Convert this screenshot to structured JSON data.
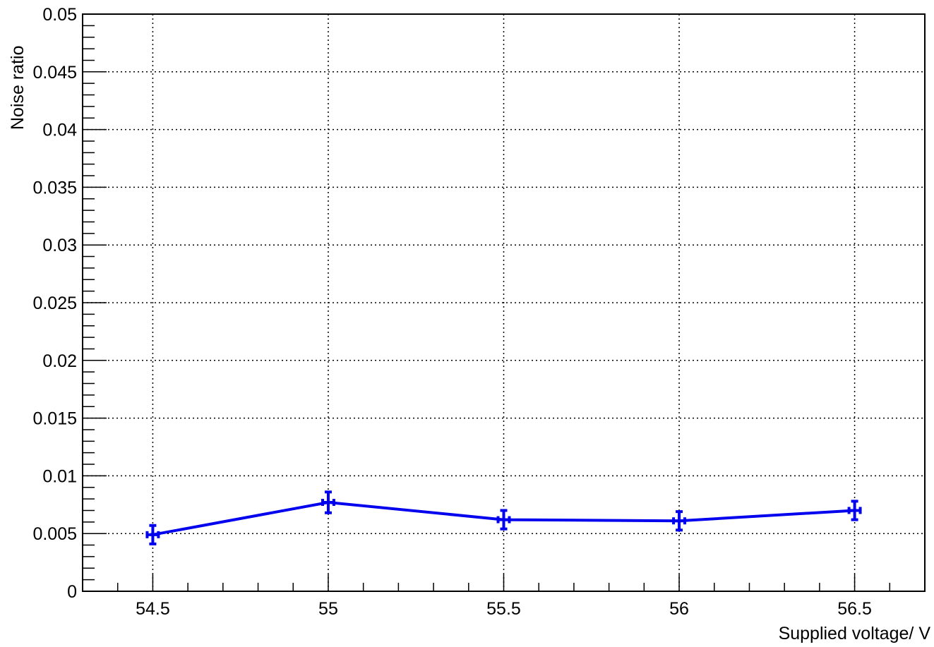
{
  "chart_data": {
    "type": "line",
    "xlabel": "Supplied voltage/ V",
    "ylabel": "Noise ratio",
    "xlim": [
      54.3,
      56.7
    ],
    "ylim": [
      0,
      0.05
    ],
    "x_ticks": [
      54.5,
      55,
      55.5,
      56,
      56.5
    ],
    "x_tick_labels": [
      "54.5",
      "55",
      "55.5",
      "56",
      "56.5"
    ],
    "y_ticks": [
      0,
      0.005,
      0.01,
      0.015,
      0.02,
      0.025,
      0.03,
      0.035,
      0.04,
      0.045,
      0.05
    ],
    "y_tick_labels": [
      "0",
      "0.005",
      "0.01",
      "0.015",
      "0.02",
      "0.025",
      "0.03",
      "0.035",
      "0.04",
      "0.045",
      "0.05"
    ],
    "grid": true,
    "series": [
      {
        "color": "#0000ee",
        "x": [
          54.5,
          55,
          55.5,
          56,
          56.5
        ],
        "y": [
          0.0049,
          0.0077,
          0.0062,
          0.0061,
          0.007
        ],
        "y_err": [
          0.0008,
          0.0009,
          0.0008,
          0.0008,
          0.0008
        ],
        "x_err": [
          0.01,
          0.01,
          0.01,
          0.01,
          0.01
        ]
      }
    ]
  }
}
